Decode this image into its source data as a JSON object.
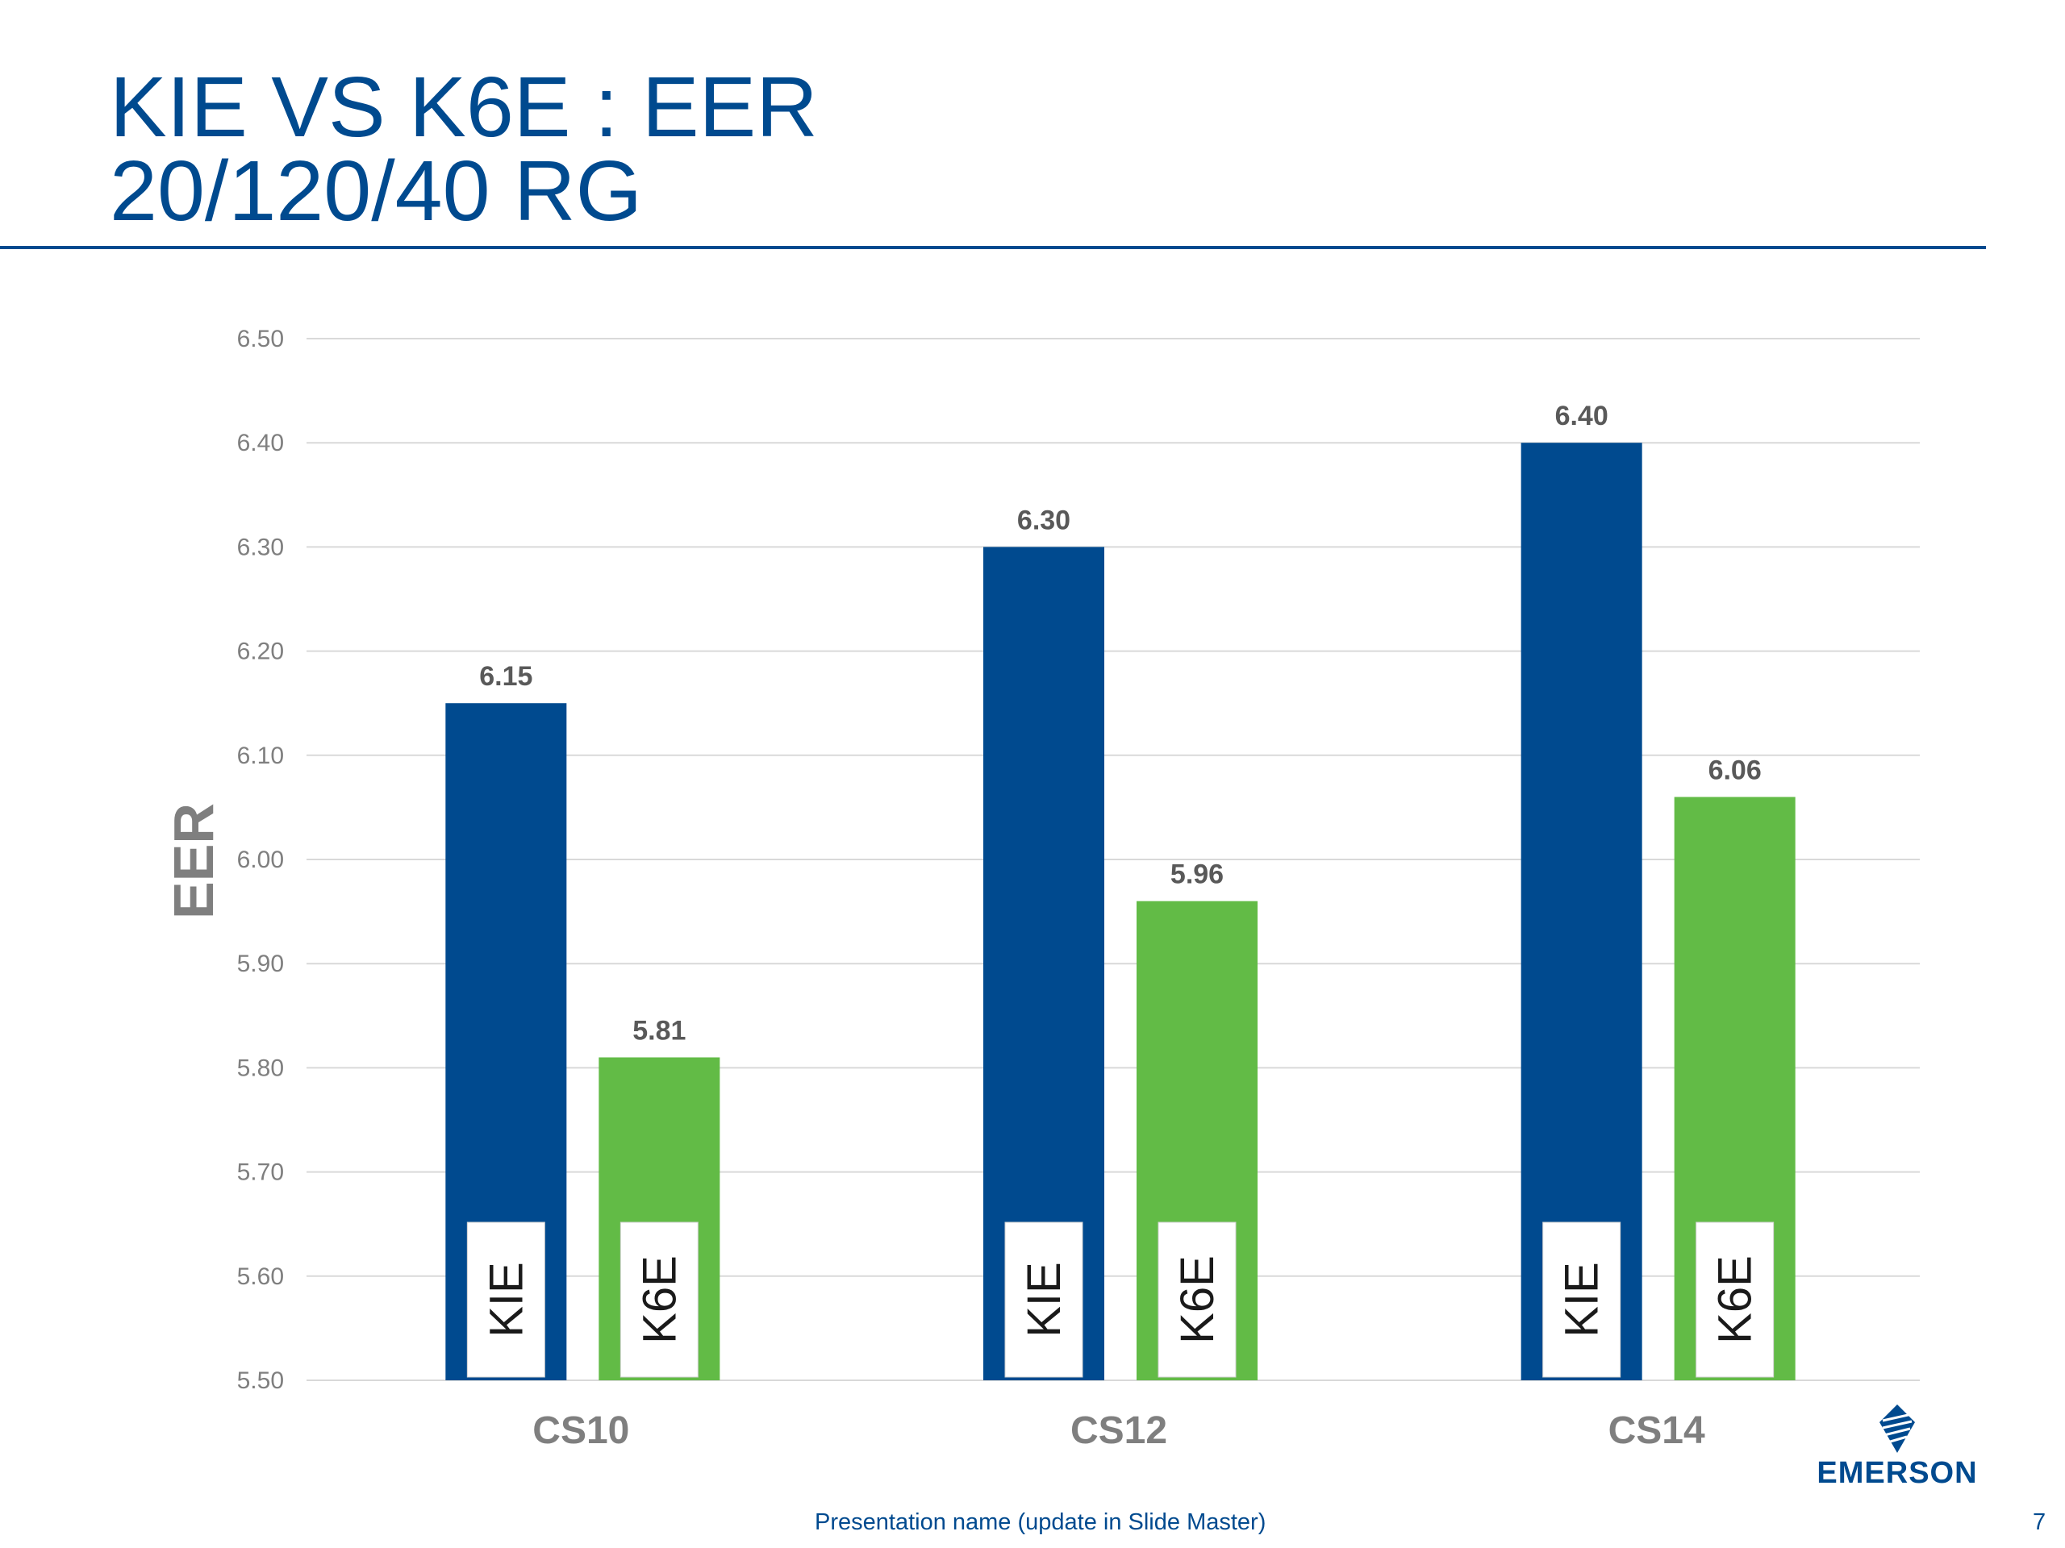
{
  "title": {
    "line1": "KIE VS K6E : EER",
    "line2": "20/120/40 RG"
  },
  "footer": {
    "presentation_name": "Presentation name (update in Slide Master)",
    "page_number": "7"
  },
  "logo": {
    "text": "EMERSON",
    "icon": "emerson-logo-icon"
  },
  "colors": {
    "title": "#004a8f",
    "kie_bar": "#004a8f",
    "k6e_bar": "#62bb46",
    "gridline": "#d9d9d9",
    "axis_text": "#7f7f7f"
  },
  "chart_data": {
    "type": "bar",
    "title": "",
    "xlabel": "",
    "ylabel": "EER",
    "ylim": [
      5.5,
      6.5
    ],
    "yticks": [
      "6.50",
      "6.40",
      "6.30",
      "6.20",
      "6.10",
      "6.00",
      "5.90",
      "5.80",
      "5.70",
      "5.60",
      "5.50"
    ],
    "ytick_values": [
      6.5,
      6.4,
      6.3,
      6.2,
      6.1,
      6.0,
      5.9,
      5.8,
      5.7,
      5.6,
      5.5
    ],
    "categories": [
      "CS10",
      "CS12",
      "CS14"
    ],
    "grid": true,
    "series": [
      {
        "name": "KIE",
        "values": [
          6.15,
          6.3,
          6.4
        ],
        "labels": [
          "6.15",
          "6.30",
          "6.40"
        ]
      },
      {
        "name": "K6E",
        "values": [
          5.81,
          5.96,
          6.06
        ],
        "labels": [
          "5.81",
          "5.96",
          "6.06"
        ]
      }
    ]
  }
}
